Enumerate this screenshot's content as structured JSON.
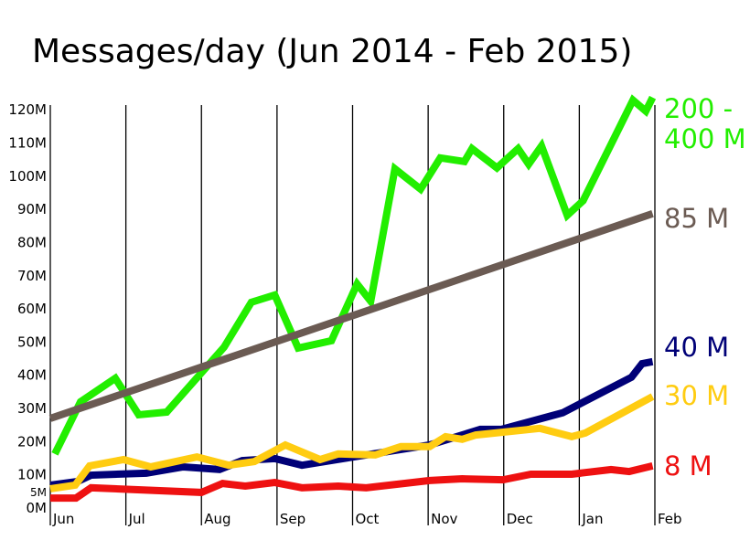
{
  "chart_data": {
    "type": "line",
    "title": "Messages/day (Jun 2014 - Feb 2015)",
    "xlim": [
      0,
      8
    ],
    "xticks": [
      {
        "value": 0,
        "label": "Jun"
      },
      {
        "value": 1,
        "label": "Jul"
      },
      {
        "value": 2,
        "label": "Aug"
      },
      {
        "value": 3,
        "label": "Sep"
      },
      {
        "value": 4,
        "label": "Oct"
      },
      {
        "value": 5,
        "label": "Nov"
      },
      {
        "value": 6,
        "label": "Dec"
      },
      {
        "value": 7,
        "label": "Jan"
      },
      {
        "value": 8,
        "label": "Feb"
      }
    ],
    "ylim": [
      0,
      125
    ],
    "yticks": [
      {
        "value": 0,
        "label": "0M"
      },
      {
        "value": 5,
        "label": "5M"
      },
      {
        "value": 10,
        "label": "10M"
      },
      {
        "value": 20,
        "label": "20M"
      },
      {
        "value": 30,
        "label": "30M"
      },
      {
        "value": 40,
        "label": "40M"
      },
      {
        "value": 50,
        "label": "50M"
      },
      {
        "value": 60,
        "label": "60M"
      },
      {
        "value": 70,
        "label": "70M"
      },
      {
        "value": 80,
        "label": "80M"
      },
      {
        "value": 90,
        "label": "90M"
      },
      {
        "value": 100,
        "label": "100M"
      },
      {
        "value": 110,
        "label": "110M"
      },
      {
        "value": 120,
        "label": "120M"
      }
    ],
    "grid": true,
    "series": [
      {
        "name": "200 - 400 M",
        "color": "#22ee00",
        "x": [
          0.06,
          0.16,
          0.4,
          0.86,
          1.17,
          1.54,
          2.3,
          2.66,
          2.97,
          3.28,
          3.72,
          4.06,
          4.24,
          4.56,
          4.9,
          5.16,
          5.48,
          5.58,
          5.91,
          6.19,
          6.33,
          6.5,
          6.84,
          7.05,
          7.71,
          7.88,
          7.97
        ],
        "values": [
          16.3,
          20.9,
          32,
          39.1,
          28.1,
          28.9,
          48.5,
          62,
          64.2,
          48.2,
          50.4,
          67.5,
          62.3,
          102.2,
          96.1,
          105.5,
          104.4,
          108.3,
          102.5,
          108.3,
          103.6,
          109.1,
          88.2,
          92.6,
          122.9,
          119.6,
          123.7
        ]
      },
      {
        "name": "85 M",
        "color": "#6b5b53",
        "x": [
          0,
          7.97
        ],
        "values": [
          27,
          88.7
        ]
      },
      {
        "name": "40 M",
        "color": "#000077",
        "x": [
          0,
          0.36,
          0.54,
          1.27,
          1.76,
          2.24,
          2.54,
          2.97,
          3.33,
          4.18,
          5.02,
          5.69,
          5.97,
          6.78,
          7.69,
          7.83,
          7.97
        ],
        "values": [
          6.9,
          8,
          9.9,
          10.5,
          12.4,
          11.6,
          14.3,
          14.9,
          12.9,
          16,
          19,
          23.7,
          23.7,
          28.7,
          39.4,
          43.5,
          44.1
        ]
      },
      {
        "name": "30 M",
        "color": "#ffcc11",
        "x": [
          0,
          0.33,
          0.52,
          0.97,
          1.33,
          1.94,
          2.36,
          2.7,
          3.11,
          3.57,
          3.81,
          4.3,
          4.64,
          5.02,
          5.23,
          5.45,
          5.63,
          6.48,
          6.9,
          7.08,
          7.97
        ],
        "values": [
          5.8,
          6.9,
          12.7,
          14.6,
          12.4,
          15.4,
          12.9,
          14,
          19,
          14.6,
          16.3,
          16,
          18.5,
          18.5,
          21.5,
          20.7,
          22,
          24,
          21.5,
          22.6,
          33.6
        ]
      },
      {
        "name": "8 M",
        "color": "#ee1111",
        "x": [
          0,
          0.34,
          0.54,
          2,
          2.28,
          2.58,
          2.97,
          3.33,
          3.81,
          4.18,
          5.02,
          5.45,
          5.99,
          6.36,
          6.9,
          7.42,
          7.66,
          7.97
        ],
        "values": [
          3,
          3,
          6.1,
          4.7,
          7.4,
          6.6,
          7.7,
          6.1,
          6.6,
          6.1,
          8.3,
          8.8,
          8.5,
          10.2,
          10.2,
          11.6,
          11,
          12.7
        ]
      }
    ]
  }
}
